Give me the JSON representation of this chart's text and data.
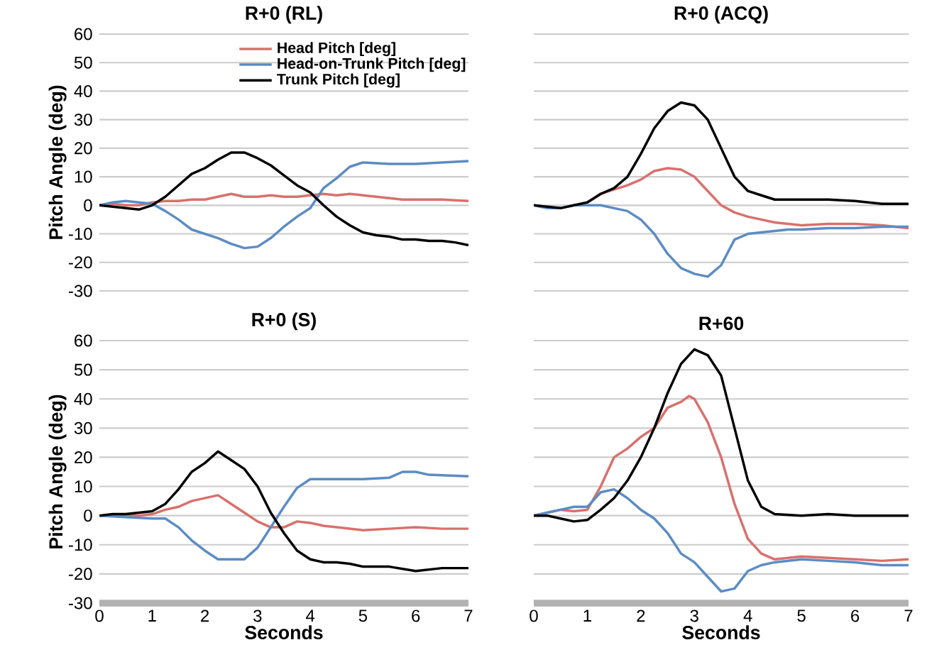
{
  "chart_data": [
    {
      "type": "line",
      "title": "R+0 (RL)",
      "ylabel": "Pitch Angle (deg)",
      "xlim": [
        0,
        7
      ],
      "xticks": [
        0,
        1,
        2,
        3,
        4,
        5,
        6,
        7
      ],
      "ylim": [
        -30,
        60
      ],
      "yticks": [
        -30,
        -20,
        -10,
        0,
        10,
        20,
        30,
        40,
        50,
        60
      ],
      "grid": "y",
      "legend": "top right",
      "marker": "none",
      "line_style": "solid",
      "tick_labels": "y",
      "series": [
        {
          "name": "Head Pitch [deg]",
          "color": "#d9706c",
          "x": [
            0,
            0.25,
            0.5,
            0.75,
            1,
            1.25,
            1.5,
            1.75,
            2,
            2.25,
            2.5,
            2.75,
            3,
            3.25,
            3.5,
            3.75,
            4,
            4.25,
            4.5,
            4.75,
            5,
            5.25,
            5.5,
            5.75,
            6,
            6.5,
            7
          ],
          "values": [
            0,
            0.5,
            0,
            0,
            1,
            1.5,
            1.5,
            2,
            2,
            3,
            4,
            3,
            3,
            3.5,
            3,
            3,
            3.5,
            4,
            3.5,
            4,
            3.5,
            3,
            2.5,
            2,
            2,
            2,
            1.5
          ]
        },
        {
          "name": "Head-on-Trunk Pitch [deg]",
          "color": "#5b8cc4",
          "x": [
            0,
            0.25,
            0.5,
            0.75,
            1,
            1.25,
            1.5,
            1.75,
            2,
            2.25,
            2.5,
            2.75,
            3,
            3.25,
            3.5,
            3.75,
            4,
            4.25,
            4.5,
            4.75,
            5,
            5.5,
            6,
            6.5,
            7
          ],
          "values": [
            0,
            1,
            1.5,
            1,
            0.5,
            -2,
            -5,
            -8.5,
            -10,
            -11.5,
            -13.5,
            -15,
            -14.5,
            -11.5,
            -7.5,
            -4,
            -1,
            6,
            9.5,
            13.5,
            15,
            14.5,
            14.5,
            15,
            15.5
          ]
        },
        {
          "name": "Trunk Pitch [deg]",
          "color": "#000000",
          "x": [
            0,
            0.25,
            0.5,
            0.75,
            1,
            1.25,
            1.5,
            1.75,
            2,
            2.25,
            2.5,
            2.75,
            3,
            3.25,
            3.5,
            3.75,
            4,
            4.25,
            4.5,
            4.75,
            5,
            5.25,
            5.5,
            5.75,
            6,
            6.25,
            6.5,
            6.75,
            7
          ],
          "values": [
            0,
            -0.5,
            -1,
            -1.5,
            0,
            3,
            7,
            11,
            13,
            16,
            18.5,
            18.5,
            16.5,
            14,
            10.5,
            7,
            4.5,
            0,
            -4,
            -7,
            -9.5,
            -10.5,
            -11,
            -12,
            -12,
            -12.5,
            -12.5,
            -13,
            -14
          ]
        }
      ]
    },
    {
      "type": "line",
      "title": "R+0 (ACQ)",
      "xlim": [
        0,
        7
      ],
      "xticks": [
        0,
        1,
        2,
        3,
        4,
        5,
        6,
        7
      ],
      "ylim": [
        -30,
        60
      ],
      "yticks": [
        -30,
        -20,
        -10,
        0,
        10,
        20,
        30,
        40,
        50,
        60
      ],
      "grid": "y",
      "marker": "none",
      "line_style": "solid",
      "tick_labels": false,
      "series": [
        {
          "color": "#d9706c",
          "x": [
            1,
            1.25,
            1.5,
            1.75,
            2,
            2.25,
            2.5,
            2.75,
            3,
            3.25,
            3.5,
            3.75,
            4,
            4.25,
            4.5,
            4.75,
            5,
            5.5,
            6,
            6.5,
            7
          ],
          "values": [
            1,
            4,
            5.5,
            7,
            9,
            12,
            13,
            12.5,
            10,
            5,
            0,
            -2.5,
            -4,
            -5,
            -6,
            -6.5,
            -7,
            -6.5,
            -6.5,
            -7,
            -8
          ]
        },
        {
          "color": "#5b8cc4",
          "x": [
            0,
            0.25,
            0.5,
            0.75,
            1,
            1.25,
            1.5,
            1.75,
            2,
            2.25,
            2.5,
            2.75,
            3,
            3.25,
            3.5,
            3.75,
            4,
            4.25,
            4.5,
            4.75,
            5,
            5.5,
            6,
            6.5,
            7
          ],
          "values": [
            0,
            -1,
            -1,
            0,
            0,
            0,
            -1,
            -2,
            -5,
            -10,
            -17,
            -22,
            -24,
            -25,
            -21,
            -12,
            -10,
            -9.5,
            -9,
            -8.5,
            -8.5,
            -8,
            -8,
            -7.5,
            -7.5
          ]
        },
        {
          "color": "#000000",
          "x": [
            0,
            0.25,
            0.5,
            0.75,
            1,
            1.25,
            1.5,
            1.75,
            2,
            2.25,
            2.5,
            2.75,
            3,
            3.25,
            3.5,
            3.75,
            4,
            4.25,
            4.5,
            4.75,
            5,
            5.5,
            6,
            6.5,
            7
          ],
          "values": [
            0,
            -0.5,
            -1,
            0,
            1,
            4,
            6,
            10,
            18,
            27,
            33,
            36,
            35,
            30,
            20,
            10,
            5,
            3.5,
            2,
            2,
            2,
            2,
            1.5,
            0.5,
            0.5
          ]
        }
      ]
    },
    {
      "type": "line",
      "title": "R+0 (S)",
      "xlabel": "Seconds",
      "ylabel": "Pitch Angle (deg)",
      "xlim": [
        0,
        7
      ],
      "xticks": [
        0,
        1,
        2,
        3,
        4,
        5,
        6,
        7
      ],
      "ylim": [
        -30,
        60
      ],
      "yticks": [
        -30,
        -20,
        -10,
        0,
        10,
        20,
        30,
        40,
        50,
        60
      ],
      "grid": "y",
      "marker": "none",
      "line_style": "solid",
      "series": [
        {
          "color": "#d9706c",
          "x": [
            0,
            0.5,
            0.75,
            1,
            1.25,
            1.5,
            1.75,
            2,
            2.25,
            2.5,
            2.75,
            3,
            3.25,
            3.5,
            3.75,
            4,
            4.25,
            4.5,
            5,
            5.5,
            6,
            6.5,
            7
          ],
          "values": [
            0,
            0,
            0,
            0.5,
            2,
            3,
            5,
            6,
            7,
            4,
            1,
            -2,
            -4,
            -4,
            -2,
            -2.5,
            -3.5,
            -4,
            -5,
            -4.5,
            -4,
            -4.5,
            -4.5
          ]
        },
        {
          "color": "#5b8cc4",
          "x": [
            0,
            0.5,
            1,
            1.25,
            1.5,
            1.75,
            2,
            2.25,
            2.5,
            2.75,
            3,
            3.25,
            3.5,
            3.75,
            4,
            4.5,
            5,
            5.5,
            5.75,
            6,
            6.25,
            7
          ],
          "values": [
            0,
            -0.5,
            -1,
            -1,
            -4,
            -8.5,
            -12,
            -15,
            -15,
            -15,
            -11,
            -4,
            3,
            9.5,
            12.5,
            12.5,
            12.5,
            13,
            15,
            15,
            14,
            13.5
          ]
        },
        {
          "color": "#000000",
          "x": [
            0,
            0.25,
            0.5,
            0.75,
            1,
            1.25,
            1.5,
            1.75,
            2,
            2.25,
            2.5,
            2.75,
            3,
            3.25,
            3.5,
            3.75,
            4,
            4.25,
            4.5,
            4.75,
            5,
            5.5,
            6,
            6.5,
            7
          ],
          "values": [
            0,
            0.5,
            0.5,
            1,
            1.5,
            4,
            9,
            15,
            18,
            22,
            19,
            16,
            10,
            1,
            -6,
            -12,
            -15,
            -16,
            -16,
            -16.5,
            -17.5,
            -17.5,
            -19,
            -18,
            -18
          ]
        }
      ]
    },
    {
      "type": "line",
      "title": "R+60",
      "xlabel": "Seconds",
      "xlim": [
        0,
        7
      ],
      "xticks": [
        0,
        1,
        2,
        3,
        4,
        5,
        6,
        7
      ],
      "ylim": [
        -30,
        60
      ],
      "yticks": [
        -30,
        -20,
        -10,
        0,
        10,
        20,
        30,
        40,
        50,
        60
      ],
      "grid": "y",
      "marker": "none",
      "line_style": "solid",
      "tick_labels": "x",
      "series": [
        {
          "color": "#d9706c",
          "x": [
            0,
            0.25,
            0.5,
            0.75,
            1,
            1.25,
            1.5,
            1.75,
            2,
            2.25,
            2.5,
            2.75,
            2.9,
            3,
            3.25,
            3.5,
            3.75,
            4,
            4.25,
            4.5,
            5,
            5.5,
            6,
            6.5,
            7
          ],
          "values": [
            0,
            1,
            2,
            1.5,
            2,
            10,
            20,
            23,
            27,
            30,
            37,
            39,
            41,
            40,
            32,
            20,
            4,
            -8,
            -13,
            -15,
            -14,
            -14.5,
            -15,
            -15.5,
            -15
          ]
        },
        {
          "color": "#5b8cc4",
          "x": [
            0,
            0.25,
            0.5,
            0.75,
            1,
            1.25,
            1.5,
            1.75,
            2,
            2.25,
            2.5,
            2.75,
            3,
            3.25,
            3.5,
            3.75,
            4,
            4.25,
            4.5,
            5,
            5.5,
            6,
            6.5,
            7
          ],
          "values": [
            0,
            1,
            2,
            3,
            3,
            8,
            9,
            6,
            2,
            -1,
            -6,
            -13,
            -16,
            -21,
            -26,
            -25,
            -19,
            -17,
            -16,
            -15,
            -15.5,
            -16,
            -17,
            -17
          ]
        },
        {
          "color": "#000000",
          "x": [
            0,
            0.25,
            0.5,
            0.75,
            1,
            1.25,
            1.5,
            1.75,
            2,
            2.25,
            2.5,
            2.75,
            3,
            3.25,
            3.5,
            3.75,
            4,
            4.25,
            4.5,
            5,
            5.5,
            6,
            7
          ],
          "values": [
            0,
            0,
            -1,
            -2,
            -1.5,
            2,
            6,
            12,
            20,
            30,
            42,
            52,
            57,
            55,
            48,
            30,
            12,
            3,
            0.5,
            0,
            0.5,
            0,
            0
          ]
        }
      ]
    }
  ]
}
